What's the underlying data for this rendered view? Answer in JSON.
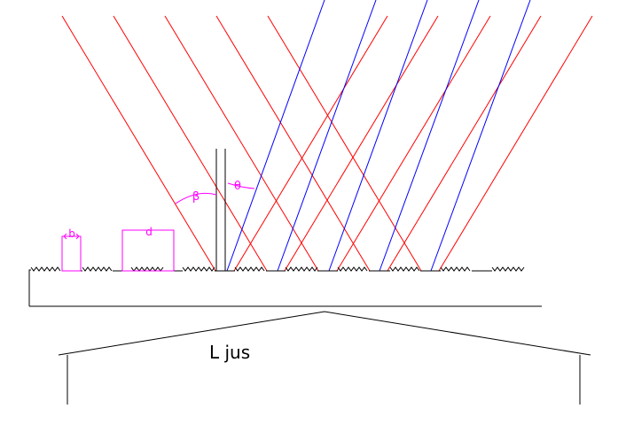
{
  "labels": {
    "b": "b",
    "d": "d",
    "beta": "β",
    "theta": "θ",
    "ljus": "L jus"
  },
  "colors": {
    "outline": "#000000",
    "incident_rays": "#ff0000",
    "reflected_rays": "#0000ff",
    "annotations": "#ff00ff"
  }
}
